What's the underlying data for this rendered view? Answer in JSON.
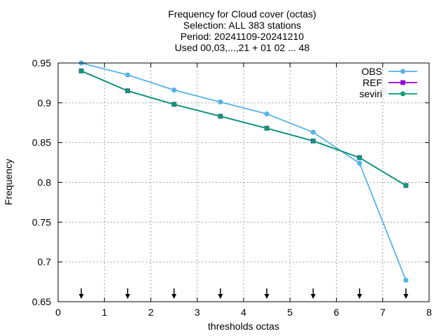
{
  "chart_data": {
    "type": "line",
    "title": [
      "Frequency  for Cloud cover (octas)",
      "Selection: ALL    383 stations",
      "Period: 20241109-20241210",
      "Used 00,03,...,21 + 01 02 ... 48"
    ],
    "xlabel": "thresholds octas",
    "ylabel": "Frequency",
    "xlim": [
      0,
      8
    ],
    "ylim": [
      0.65,
      0.95
    ],
    "xticks": [
      "0",
      "1",
      "2",
      "3",
      "4",
      "5",
      "6",
      "7",
      "8"
    ],
    "yticks": [
      "0.65",
      "0.7",
      "0.75",
      "0.8",
      "0.85",
      "0.9",
      "0.95"
    ],
    "grid": true,
    "legend_position": "top-right",
    "x": [
      0.5,
      1.5,
      2.5,
      3.5,
      4.5,
      5.5,
      6.5,
      7.5
    ],
    "series": [
      {
        "name": "OBS",
        "color": "#56b4e9",
        "marker": "circle",
        "values": [
          0.95,
          0.935,
          0.916,
          0.901,
          0.886,
          0.863,
          0.824,
          0.677
        ]
      },
      {
        "name": "REF",
        "color": "#9400d3",
        "marker": "square",
        "values": [
          0.94,
          0.915,
          0.898,
          0.883,
          0.868,
          0.852,
          0.831,
          0.796
        ]
      },
      {
        "name": "seviri",
        "color": "#009e73",
        "marker": "pentagon",
        "values": [
          0.94,
          0.915,
          0.898,
          0.883,
          0.868,
          0.852,
          0.831,
          0.796
        ]
      }
    ],
    "arrow_markers_x": [
      0.5,
      1.5,
      2.5,
      3.5,
      4.5,
      5.5,
      6.5,
      7.5
    ]
  }
}
